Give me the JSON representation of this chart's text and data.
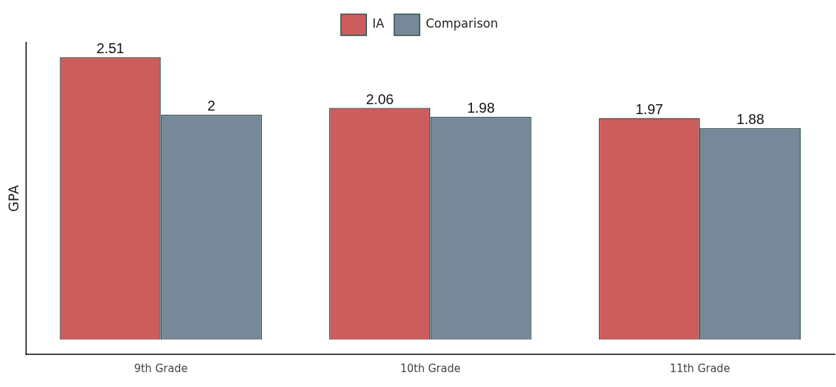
{
  "chart_data": {
    "type": "bar",
    "ylabel": "GPA",
    "categories": [
      "9th Grade",
      "10th Grade",
      "11th Grade"
    ],
    "series": [
      {
        "name": "IA",
        "color": "#cd5c5c",
        "values": [
          2.51,
          2.06,
          1.97
        ]
      },
      {
        "name": "Comparison",
        "color": "#778899",
        "values": [
          2,
          1.98,
          1.88
        ]
      }
    ],
    "ylim": [
      -0.13,
      2.64
    ],
    "tick_labels": "x",
    "data_labels": true,
    "legend": "top",
    "grid": false
  }
}
